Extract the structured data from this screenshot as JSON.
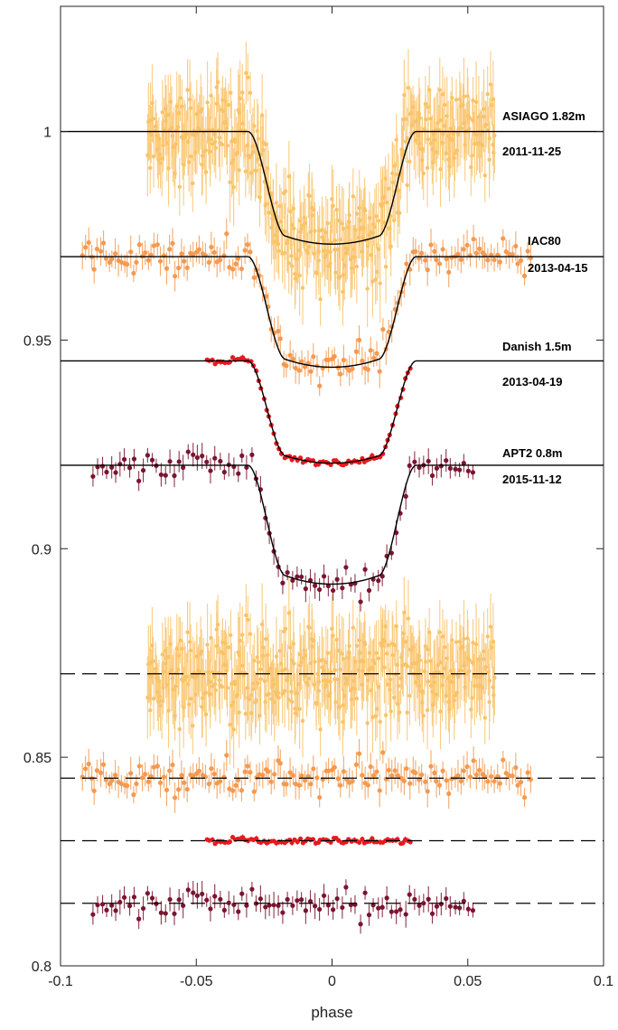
{
  "chart_data": {
    "type": "scatter",
    "title": "",
    "xlabel": "phase",
    "ylabel": "",
    "xlim": [
      -0.1,
      0.1
    ],
    "ylim": [
      0.8,
      1.03
    ],
    "x_ticks": [
      -0.1,
      -0.05,
      0,
      0.05,
      0.1
    ],
    "x_tick_labels": [
      "-0.1",
      "-0.05",
      "0",
      "0.05",
      "0.1"
    ],
    "y_ticks": [
      0.8,
      0.85,
      0.9,
      0.95,
      1.0
    ],
    "y_tick_labels": [
      "0.8",
      "0.85",
      "0.9",
      "0.95",
      "1"
    ],
    "grid": false,
    "legend": "none",
    "series": [
      {
        "name": "ASIAGO 1.82m",
        "label_line1": "ASIAGO 1.82m",
        "label_line2": "2011-11-25",
        "color": "#f9c36a",
        "baseline": 1.0,
        "depth": 0.027,
        "phase_range": [
          -0.068,
          0.06
        ],
        "scatter": 0.0055,
        "n_points": 420,
        "residual_baseline": 0.87
      },
      {
        "name": "IAC80",
        "label_line1": "IAC80",
        "label_line2": "2013-04-15",
        "color": "#f39a50",
        "baseline": 0.97,
        "depth": 0.0265,
        "phase_range": [
          -0.092,
          0.073
        ],
        "scatter": 0.0022,
        "n_points": 150,
        "residual_baseline": 0.845
      },
      {
        "name": "Danish 1.5m",
        "label_line1": "Danish 1.5m",
        "label_line2": "2013-04-19",
        "color": "#e8191f",
        "baseline": 0.945,
        "depth": 0.0245,
        "phase_range": [
          -0.046,
          0.029
        ],
        "scatter": 0.0004,
        "n_points": 80,
        "residual_baseline": 0.83
      },
      {
        "name": "APT2 0.8m",
        "label_line1": "APT2 0.8m",
        "label_line2": "2015-11-12",
        "color": "#7a1430",
        "baseline": 0.92,
        "depth": 0.0285,
        "phase_range": [
          -0.088,
          0.052
        ],
        "scatter": 0.0018,
        "n_points": 85,
        "residual_baseline": 0.815
      }
    ],
    "transit_model": {
      "ingress_start": -0.031,
      "bottom_start": -0.017,
      "bottom_end": 0.017,
      "egress_end": 0.031
    }
  }
}
